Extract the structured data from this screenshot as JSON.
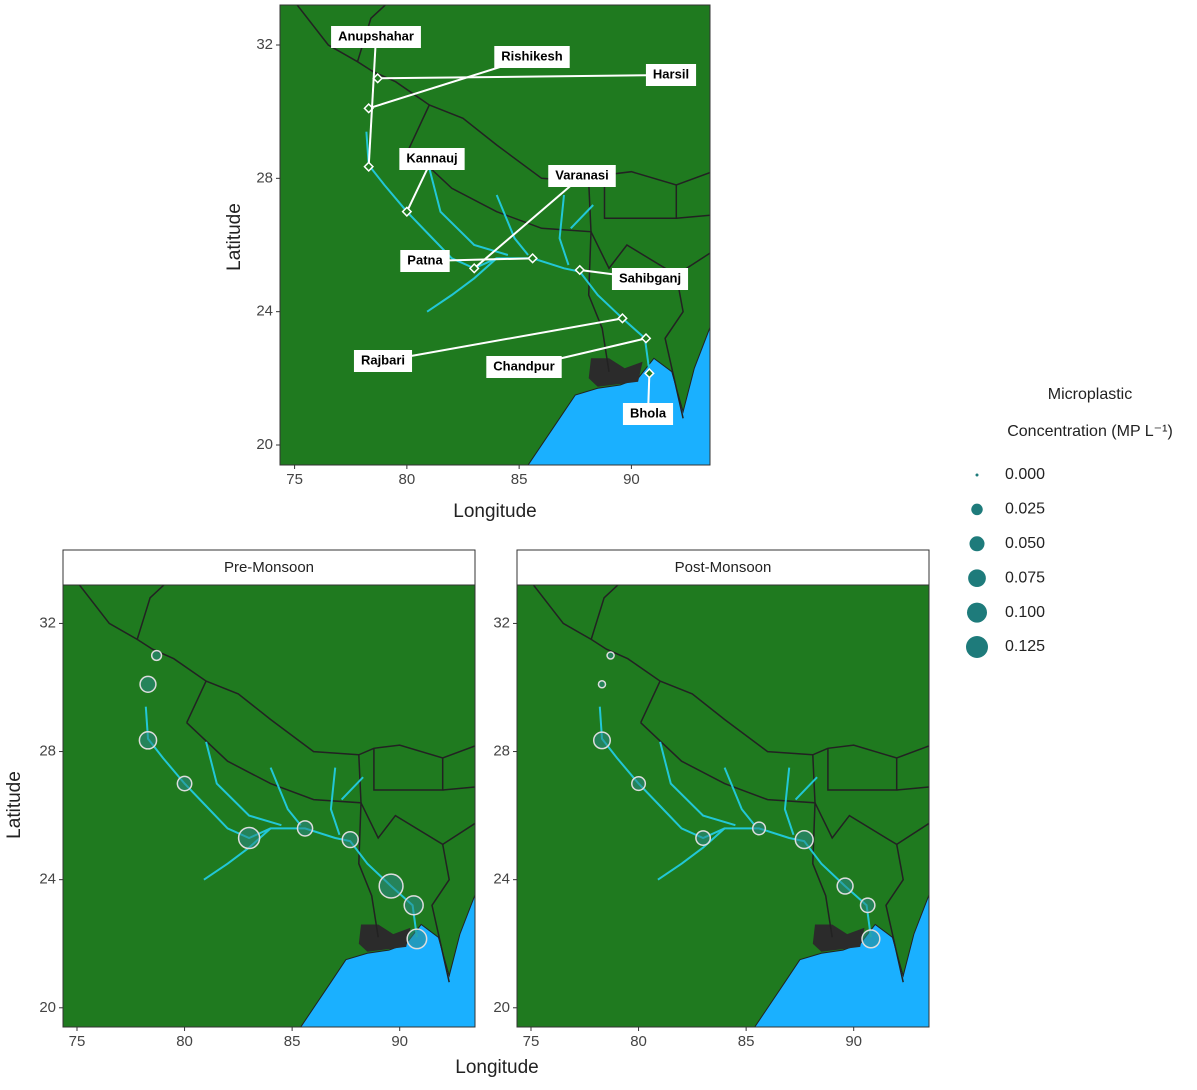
{
  "map": {
    "x_label": "Longitude",
    "y_label": "Latitude",
    "xlim": [
      74.35,
      93.5
    ],
    "ylim": [
      19.4,
      33.2
    ],
    "xticks": [
      75,
      80,
      85,
      90
    ],
    "yticks": [
      20,
      24,
      28,
      32
    ],
    "colors": {
      "land": "#1f7a1f",
      "sea": "#1ab0ff",
      "river": "#22c7d6",
      "delta": "#2b2b2b",
      "border": "#222222",
      "bubble": "#2a8a8a"
    }
  },
  "sites": [
    {
      "name": "Harsil",
      "lon": 78.7,
      "lat": 31.0
    },
    {
      "name": "Rishikesh",
      "lon": 78.3,
      "lat": 30.1
    },
    {
      "name": "Anupshahar",
      "lon": 78.3,
      "lat": 28.35
    },
    {
      "name": "Kannauj",
      "lon": 80.0,
      "lat": 27.0
    },
    {
      "name": "Varanasi",
      "lon": 83.0,
      "lat": 25.3
    },
    {
      "name": "Patna",
      "lon": 85.6,
      "lat": 25.6
    },
    {
      "name": "Sahibganj",
      "lon": 87.7,
      "lat": 25.25
    },
    {
      "name": "Rajbari",
      "lon": 89.6,
      "lat": 23.8
    },
    {
      "name": "Chandpur",
      "lon": 90.65,
      "lat": 23.2
    },
    {
      "name": "Bhola",
      "lon": 90.8,
      "lat": 22.15
    }
  ],
  "panels": [
    {
      "title": "Pre-Monsoon",
      "values": [
        0.012,
        0.045,
        0.055,
        0.035,
        0.09,
        0.04,
        0.045,
        0.12,
        0.07,
        0.075
      ]
    },
    {
      "title": "Post-Monsoon",
      "values": [
        0.004,
        0.004,
        0.05,
        0.03,
        0.035,
        0.025,
        0.06,
        0.045,
        0.035,
        0.06
      ]
    }
  ],
  "legend": {
    "title": [
      "Microplastic",
      "Concentration (MP L⁻¹)"
    ],
    "sizes": [
      {
        "value": 0,
        "label": "0.000"
      },
      {
        "value": 0.025,
        "label": "0.025"
      },
      {
        "value": 0.05,
        "label": "0.050"
      },
      {
        "value": 0.075,
        "label": "0.075"
      },
      {
        "value": 0.1,
        "label": "0.100"
      },
      {
        "value": 0.125,
        "label": "0.125"
      }
    ]
  }
}
